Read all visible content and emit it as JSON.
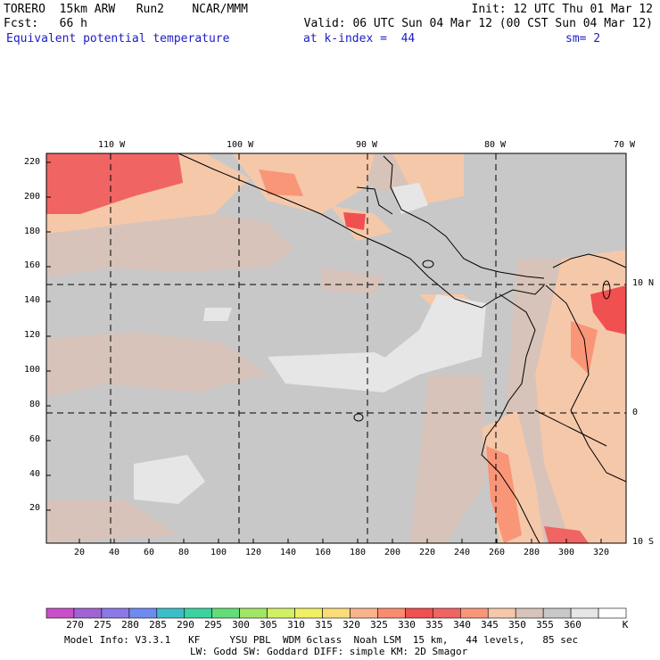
{
  "header": {
    "model": "TORERO  15km ARW   Run2    NCAR/MMM",
    "init": "Init: 12 UTC Thu 01 Mar 12",
    "fcst": "Fcst:   66 h",
    "valid": "Valid: 06 UTC Sun 04 Mar 12 (00 CST Sun 04 Mar 12)",
    "field": "Equivalent potential temperature",
    "level": "at k-index =  44",
    "smooth": "sm= 2"
  },
  "map": {
    "top_labels": [
      "110 W",
      "100 W",
      "90 W",
      "80 W",
      "70 W"
    ],
    "right_labels": [
      "10 N",
      "0",
      "10 S"
    ],
    "left_ticks": [
      "220",
      "200",
      "180",
      "160",
      "140",
      "120",
      "100",
      "80",
      "60",
      "40",
      "20"
    ],
    "bottom_ticks": [
      "20",
      "40",
      "60",
      "80",
      "100",
      "120",
      "140",
      "160",
      "180",
      "200",
      "220",
      "240",
      "260",
      "280",
      "300",
      "320"
    ]
  },
  "colorbar": {
    "labels": [
      "270",
      "275",
      "280",
      "285",
      "290",
      "295",
      "300",
      "305",
      "310",
      "315",
      "320",
      "325",
      "330",
      "335",
      "340",
      "345",
      "350",
      "355",
      "360"
    ],
    "unit": "K",
    "colors": [
      "#c850c8",
      "#a064d2",
      "#8c78e6",
      "#6e8cf0",
      "#3cbec8",
      "#3cd2a0",
      "#64dc78",
      "#a0e664",
      "#d2f064",
      "#f0f064",
      "#fadc78",
      "#fab48c",
      "#fa8c6e",
      "#f05050",
      "#f06464",
      "#fa9678",
      "#f5c8aa",
      "#d7c3b9",
      "#c8c8c8",
      "#e6e6e6",
      "#ffffff"
    ]
  },
  "footer": {
    "line1": "Model Info: V3.3.1   KF     YSU PBL  WDM 6class  Noah LSM  15 km,   44 levels,   85 sec",
    "line2": "LW: Godd SW: Goddard DIFF: simple KM: 2D Smagor"
  }
}
